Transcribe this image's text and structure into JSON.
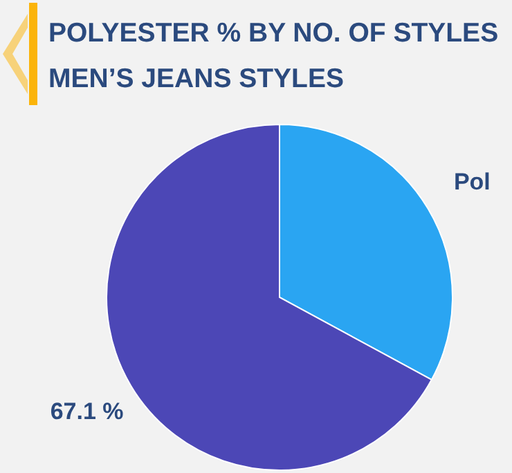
{
  "chart_data": {
    "type": "pie",
    "title": "POLYESTER % BY NO. OF STYLES",
    "subtitle": "MEN’S JEANS STYLES",
    "categories": [
      null,
      null
    ],
    "values": [
      32.9,
      67.1
    ],
    "colors": [
      "#2aa5f2",
      "#4c47b6"
    ],
    "value_labels": [
      "Pol",
      "67.1 %"
    ]
  }
}
